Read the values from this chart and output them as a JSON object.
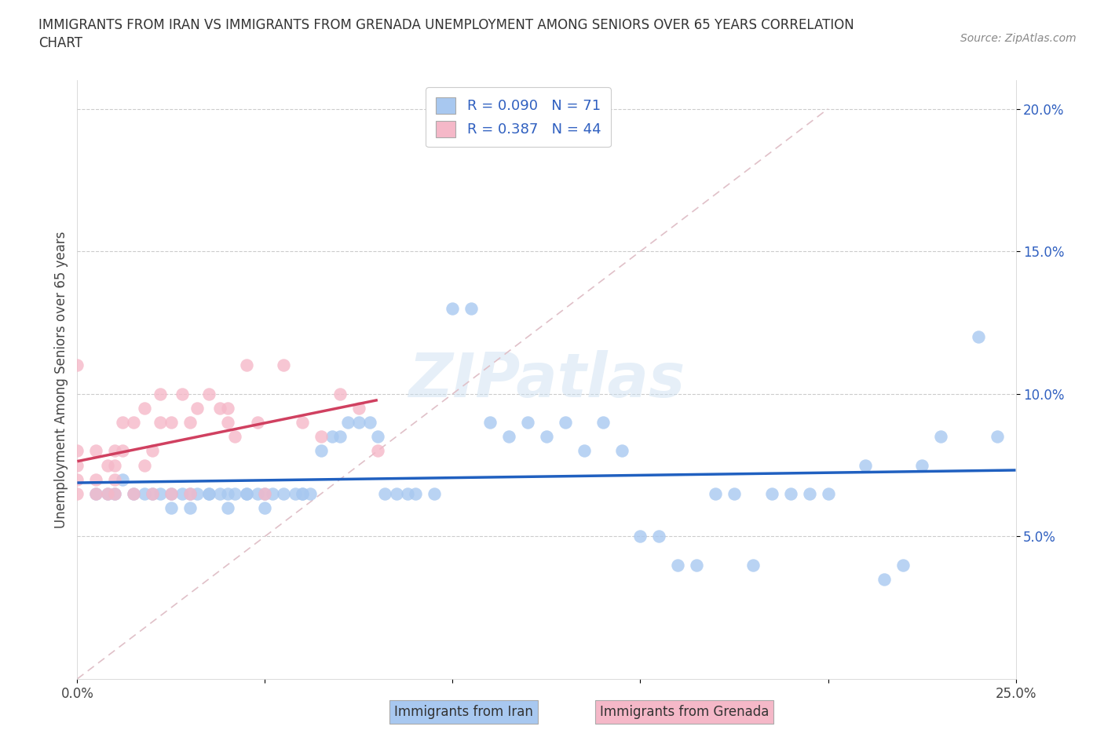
{
  "title_line1": "IMMIGRANTS FROM IRAN VS IMMIGRANTS FROM GRENADA UNEMPLOYMENT AMONG SENIORS OVER 65 YEARS CORRELATION",
  "title_line2": "CHART",
  "source": "Source: ZipAtlas.com",
  "ylabel": "Unemployment Among Seniors over 65 years",
  "xlim": [
    0.0,
    0.25
  ],
  "ylim": [
    0.0,
    0.21
  ],
  "yticks": [
    0.05,
    0.1,
    0.15,
    0.2
  ],
  "ytick_labels": [
    "5.0%",
    "10.0%",
    "15.0%",
    "20.0%"
  ],
  "xticks": [
    0.0,
    0.05,
    0.1,
    0.15,
    0.2,
    0.25
  ],
  "xtick_labels": [
    "0.0%",
    "",
    "",
    "",
    "",
    "25.0%"
  ],
  "legend_R_iran": "0.090",
  "legend_N_iran": "71",
  "legend_R_grenada": "0.387",
  "legend_N_grenada": "44",
  "color_iran": "#a8c8f0",
  "color_grenada": "#f5b8c8",
  "line_iran": "#2060c0",
  "line_grenada": "#d04060",
  "watermark": "ZIPatlas",
  "iran_scatter_x": [
    0.005,
    0.008,
    0.01,
    0.012,
    0.015,
    0.018,
    0.02,
    0.022,
    0.025,
    0.025,
    0.028,
    0.03,
    0.03,
    0.032,
    0.035,
    0.035,
    0.038,
    0.04,
    0.04,
    0.042,
    0.045,
    0.045,
    0.048,
    0.05,
    0.05,
    0.052,
    0.055,
    0.058,
    0.06,
    0.06,
    0.062,
    0.065,
    0.068,
    0.07,
    0.072,
    0.075,
    0.078,
    0.08,
    0.082,
    0.085,
    0.088,
    0.09,
    0.095,
    0.1,
    0.105,
    0.11,
    0.115,
    0.12,
    0.125,
    0.13,
    0.135,
    0.14,
    0.145,
    0.15,
    0.155,
    0.16,
    0.165,
    0.17,
    0.175,
    0.18,
    0.185,
    0.19,
    0.195,
    0.2,
    0.21,
    0.215,
    0.22,
    0.225,
    0.23,
    0.24,
    0.245
  ],
  "iran_scatter_y": [
    0.065,
    0.065,
    0.065,
    0.07,
    0.065,
    0.065,
    0.065,
    0.065,
    0.06,
    0.065,
    0.065,
    0.065,
    0.06,
    0.065,
    0.065,
    0.065,
    0.065,
    0.065,
    0.06,
    0.065,
    0.065,
    0.065,
    0.065,
    0.065,
    0.06,
    0.065,
    0.065,
    0.065,
    0.065,
    0.065,
    0.065,
    0.08,
    0.085,
    0.085,
    0.09,
    0.09,
    0.09,
    0.085,
    0.065,
    0.065,
    0.065,
    0.065,
    0.065,
    0.13,
    0.13,
    0.09,
    0.085,
    0.09,
    0.085,
    0.09,
    0.08,
    0.09,
    0.08,
    0.05,
    0.05,
    0.04,
    0.04,
    0.065,
    0.065,
    0.04,
    0.065,
    0.065,
    0.065,
    0.065,
    0.075,
    0.035,
    0.04,
    0.075,
    0.085,
    0.12,
    0.085
  ],
  "grenada_scatter_x": [
    0.0,
    0.0,
    0.0,
    0.0,
    0.0,
    0.005,
    0.005,
    0.005,
    0.008,
    0.008,
    0.01,
    0.01,
    0.01,
    0.01,
    0.012,
    0.012,
    0.015,
    0.015,
    0.018,
    0.018,
    0.02,
    0.02,
    0.022,
    0.022,
    0.025,
    0.025,
    0.028,
    0.03,
    0.03,
    0.032,
    0.035,
    0.038,
    0.04,
    0.04,
    0.042,
    0.045,
    0.048,
    0.05,
    0.055,
    0.06,
    0.065,
    0.07,
    0.075,
    0.08
  ],
  "grenada_scatter_y": [
    0.065,
    0.07,
    0.075,
    0.08,
    0.11,
    0.065,
    0.07,
    0.08,
    0.065,
    0.075,
    0.065,
    0.07,
    0.075,
    0.08,
    0.08,
    0.09,
    0.065,
    0.09,
    0.075,
    0.095,
    0.065,
    0.08,
    0.09,
    0.1,
    0.065,
    0.09,
    0.1,
    0.065,
    0.09,
    0.095,
    0.1,
    0.095,
    0.09,
    0.095,
    0.085,
    0.11,
    0.09,
    0.065,
    0.11,
    0.09,
    0.085,
    0.1,
    0.095,
    0.08
  ]
}
